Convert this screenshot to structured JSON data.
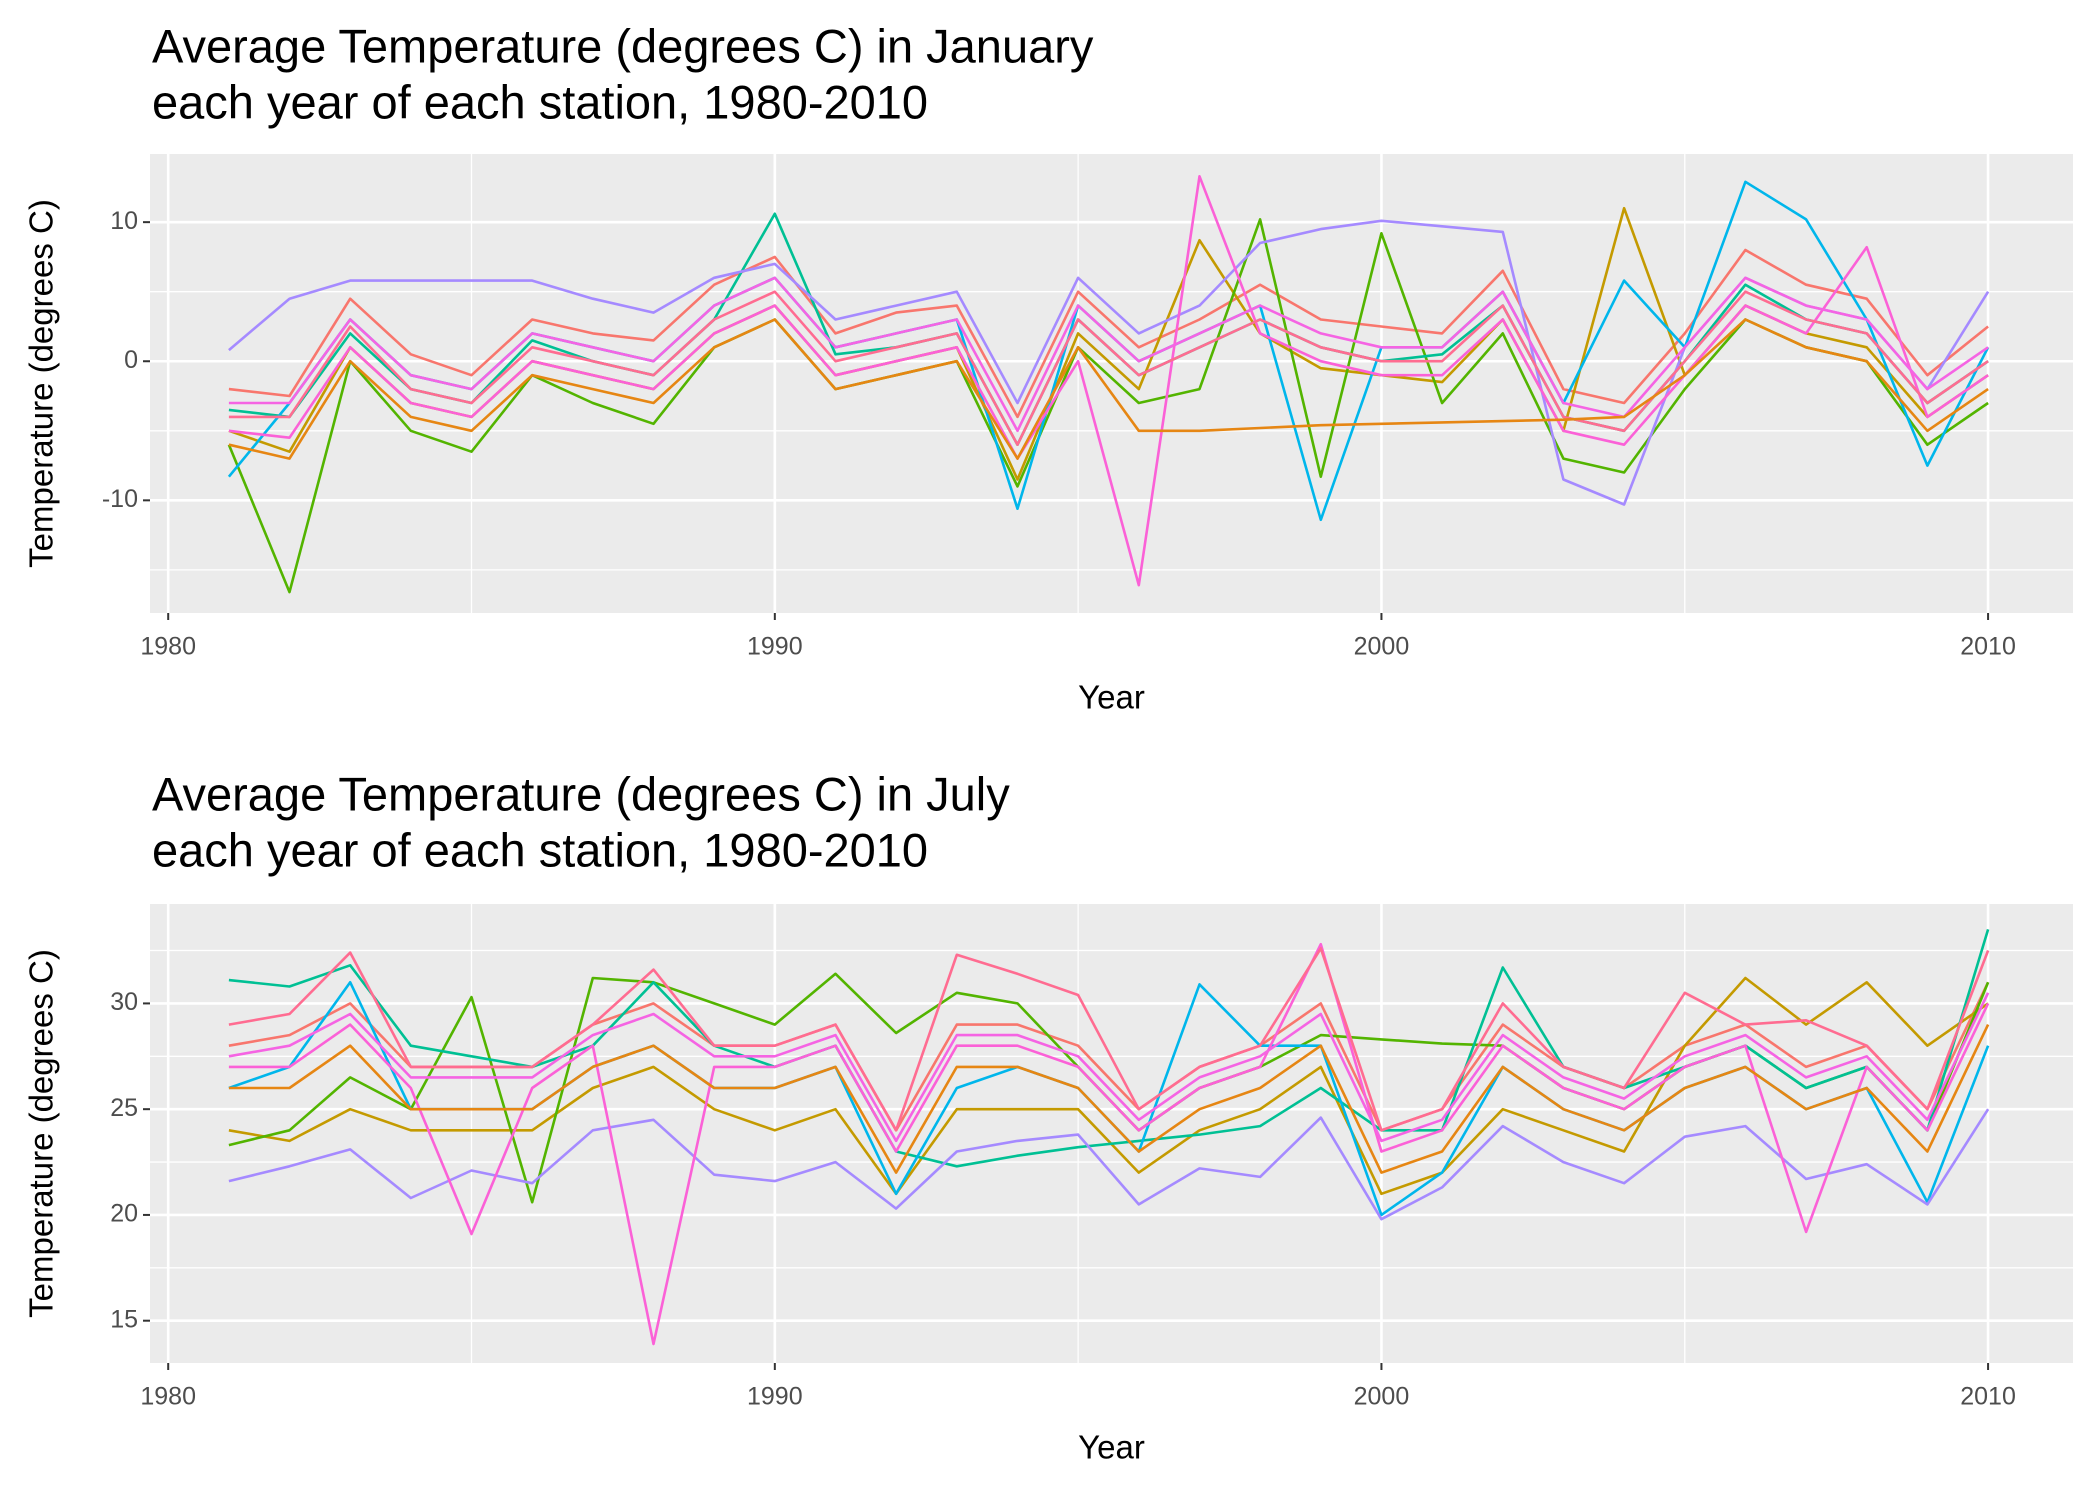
{
  "chart_data": [
    {
      "type": "line",
      "title": "Average Temperature (degrees C) in January",
      "subtitle": "each year of each station, 1980-2010",
      "xlabel": "Year",
      "ylabel": "Temperature (degrees C)",
      "x": [
        1981,
        1982,
        1983,
        1984,
        1985,
        1986,
        1987,
        1988,
        1989,
        1990,
        1991,
        1992,
        1993,
        1994,
        1995,
        1996,
        1997,
        1998,
        1999,
        2000,
        2001,
        2002,
        2003,
        2004,
        2005,
        2006,
        2007,
        2008,
        2009,
        2010
      ],
      "xlim": [
        1979.7,
        2011.4
      ],
      "xticks": [
        1980,
        1990,
        2000,
        2010
      ],
      "xticks_minor": [
        1985,
        1995,
        2005
      ],
      "ylim": [
        -18.1,
        14.9
      ],
      "yticks": [
        -10,
        0,
        10
      ],
      "yticks_minor": [
        -15,
        -5,
        5
      ],
      "grid": true,
      "series": [
        {
          "color": "#F8766D",
          "values": [
            -2,
            -2.5,
            4.5,
            0.5,
            -1,
            3,
            2,
            1.5,
            5.5,
            7.5,
            2,
            3.5,
            4,
            -4,
            5,
            1,
            3,
            5.5,
            3,
            2.5,
            2,
            6.5,
            -2,
            -3,
            2,
            8,
            5.5,
            4.5,
            -1,
            2.5
          ]
        },
        {
          "color": "#C49A00",
          "values": [
            -5,
            -6.5,
            1,
            -3,
            -4,
            0,
            -1,
            -2,
            2,
            4,
            -1,
            0,
            1,
            -8.5,
            2,
            -2,
            8.7,
            2,
            -0.5,
            -1,
            -1.5,
            3,
            -5,
            11,
            -1,
            4,
            2,
            1,
            -4,
            -1
          ]
        },
        {
          "color": "#53B400",
          "values": [
            -6,
            -16.6,
            0,
            -5,
            -6.5,
            -1,
            -3,
            -4.5,
            1,
            3,
            -2,
            -1,
            0,
            -9,
            1,
            -3,
            -2,
            10.2,
            -8.3,
            9.2,
            -3,
            2,
            -7,
            -8,
            -2,
            3,
            1,
            0,
            -6,
            -3
          ]
        },
        {
          "color": "#00C094",
          "values": [
            -3.5,
            -4,
            2,
            -2,
            -3,
            1.5,
            0,
            -1,
            3,
            10.6,
            0.5,
            1,
            2,
            -6,
            3,
            -1,
            1,
            3,
            1,
            0,
            0.5,
            4,
            -4,
            -5,
            0,
            5.5,
            3,
            2,
            -3,
            0
          ]
        },
        {
          "color": "#00B6EB",
          "values": [
            -8.3,
            -3,
            3,
            -1,
            -2,
            2,
            1,
            0,
            4,
            6,
            1,
            2,
            3,
            -10.6,
            4,
            0,
            2,
            4,
            -11.4,
            1,
            1,
            5,
            -3,
            5.8,
            1,
            12.9,
            10.2,
            3,
            -7.5,
            1
          ]
        },
        {
          "color": "#A58AFF",
          "values": [
            0.8,
            4.5,
            5.8,
            5.8,
            5.8,
            5.8,
            4.5,
            3.5,
            6,
            7,
            3,
            4,
            5,
            -3,
            6,
            2,
            4,
            8.5,
            9.5,
            10.1,
            9.7,
            9.3,
            -8.5,
            -10.3,
            1,
            6,
            4,
            3,
            -2,
            5
          ]
        },
        {
          "color": "#FB61D7",
          "values": [
            -5,
            -5.5,
            1,
            -3,
            -4,
            0,
            -1,
            -2,
            2,
            4,
            -1,
            0,
            1,
            -7,
            0,
            -16.1,
            13.3,
            2,
            0,
            -1,
            -1,
            3,
            -5,
            -6,
            -1,
            4,
            2,
            8.2,
            -4,
            -1
          ]
        },
        {
          "color": "#FF6C91",
          "values": [
            -4,
            -4,
            2.5,
            -2,
            -3,
            1,
            0,
            -1,
            3,
            5,
            0,
            1,
            2,
            -6,
            3,
            -1,
            1,
            3,
            1,
            0,
            0,
            4,
            -4,
            -5,
            0,
            5,
            3,
            2,
            -3,
            0
          ]
        },
        {
          "color": "#F564E3",
          "values": [
            -3,
            -3,
            3,
            -1,
            -2,
            2,
            1,
            0,
            4,
            6,
            1,
            2,
            3,
            -5,
            4,
            0,
            2,
            4,
            2,
            1,
            1,
            5,
            -3,
            -4,
            1,
            6,
            4,
            3,
            -2,
            1
          ]
        },
        {
          "color": "#E68613",
          "values": [
            -6,
            -7,
            0,
            -4,
            -5,
            -1,
            -2,
            -3,
            1,
            3,
            -2,
            -1,
            0,
            -7,
            1,
            -5,
            -5,
            -4.8,
            -4.6,
            -4.5,
            -4.4,
            -4.3,
            -4.2,
            -4,
            -1,
            3,
            1,
            0,
            -5,
            -2
          ]
        }
      ]
    },
    {
      "type": "line",
      "title": "Average Temperature (degrees C) in July",
      "subtitle": "each year of each station, 1980-2010",
      "xlabel": "Year",
      "ylabel": "Temperature (degrees C)",
      "x": [
        1981,
        1982,
        1983,
        1984,
        1985,
        1986,
        1987,
        1988,
        1989,
        1990,
        1991,
        1992,
        1993,
        1994,
        1995,
        1996,
        1997,
        1998,
        1999,
        2000,
        2001,
        2002,
        2003,
        2004,
        2005,
        2006,
        2007,
        2008,
        2009,
        2010
      ],
      "xlim": [
        1979.7,
        2011.4
      ],
      "xticks": [
        1980,
        1990,
        2000,
        2010
      ],
      "xticks_minor": [
        1985,
        1995,
        2005
      ],
      "ylim": [
        13,
        34.7
      ],
      "yticks": [
        15,
        20,
        25,
        30
      ],
      "yticks_minor": [
        17.5,
        22.5,
        27.5,
        32.5
      ],
      "grid": true,
      "series": [
        {
          "color": "#F8766D",
          "values": [
            28,
            28.5,
            30,
            27,
            27,
            27,
            29,
            30,
            28,
            28,
            29,
            24,
            29,
            29,
            28,
            25,
            27,
            28,
            30,
            24,
            25,
            29,
            27,
            26,
            28,
            29,
            27,
            28,
            25,
            31
          ]
        },
        {
          "color": "#C49A00",
          "values": [
            24,
            23.5,
            25,
            24,
            24,
            24,
            26,
            27,
            25,
            24,
            25,
            21,
            25,
            25,
            25,
            22,
            24,
            25,
            27,
            21,
            22,
            25,
            24,
            23,
            28,
            31.2,
            29,
            31,
            28,
            30
          ]
        },
        {
          "color": "#53B400",
          "values": [
            23.3,
            24,
            26.5,
            25,
            30.3,
            20.6,
            31.2,
            31,
            30,
            29,
            31.4,
            28.6,
            30.5,
            30,
            27,
            24,
            26,
            27,
            28.5,
            28.3,
            28.1,
            28,
            26,
            25,
            27,
            28,
            26,
            27,
            24,
            31
          ]
        },
        {
          "color": "#00C094",
          "values": [
            31.1,
            30.8,
            31.8,
            28,
            27.5,
            27,
            28,
            31,
            28,
            27,
            28,
            23,
            22.3,
            22.8,
            23.2,
            23.5,
            23.8,
            24.2,
            26,
            24,
            24,
            31.7,
            27,
            26,
            27,
            28,
            26,
            27,
            24,
            33.5
          ]
        },
        {
          "color": "#00B6EB",
          "values": [
            26,
            27,
            31,
            25,
            25,
            25,
            27,
            28,
            26,
            26,
            27,
            21,
            26,
            27,
            26,
            23,
            30.9,
            28,
            28,
            20,
            22,
            27,
            25,
            24,
            26,
            27,
            25,
            26,
            20.6,
            28
          ]
        },
        {
          "color": "#A58AFF",
          "values": [
            21.6,
            22.3,
            23.1,
            20.8,
            22.1,
            21.5,
            24,
            24.5,
            21.9,
            21.6,
            22.5,
            20.3,
            23,
            23.5,
            23.8,
            20.5,
            22.2,
            21.8,
            24.6,
            19.8,
            21.3,
            24.2,
            22.5,
            21.5,
            23.7,
            24.2,
            21.7,
            22.4,
            20.5,
            25
          ]
        },
        {
          "color": "#FB61D7",
          "values": [
            27,
            27,
            29,
            26,
            19.1,
            26,
            28,
            13.9,
            27,
            27,
            28,
            23,
            28,
            28,
            27,
            24,
            26,
            27,
            32.8,
            23,
            24,
            28,
            26,
            25,
            27,
            28,
            19.2,
            27,
            24,
            30
          ]
        },
        {
          "color": "#FF6C91",
          "values": [
            29,
            29.5,
            32.4,
            27,
            27,
            27,
            29,
            31.6,
            28,
            28,
            29,
            24,
            32.3,
            31.4,
            30.4,
            25,
            27,
            28,
            32.6,
            24,
            25,
            30,
            27,
            26,
            30.5,
            29,
            29.2,
            28,
            25,
            32.5
          ]
        },
        {
          "color": "#F564E3",
          "values": [
            27.5,
            28,
            29.5,
            26.5,
            26.5,
            26.5,
            28.5,
            29.5,
            27.5,
            27.5,
            28.5,
            23.5,
            28.5,
            28.5,
            27.5,
            24.5,
            26.5,
            27.5,
            29.5,
            23.5,
            24.5,
            28.5,
            26.5,
            25.5,
            27.5,
            28.5,
            26.5,
            27.5,
            24.5,
            30.5
          ]
        },
        {
          "color": "#E68613",
          "values": [
            26,
            26,
            28,
            25,
            25,
            25,
            27,
            28,
            26,
            26,
            27,
            22,
            27,
            27,
            26,
            23,
            25,
            26,
            28,
            22,
            23,
            27,
            25,
            24,
            26,
            27,
            25,
            26,
            23,
            29
          ]
        }
      ]
    }
  ]
}
